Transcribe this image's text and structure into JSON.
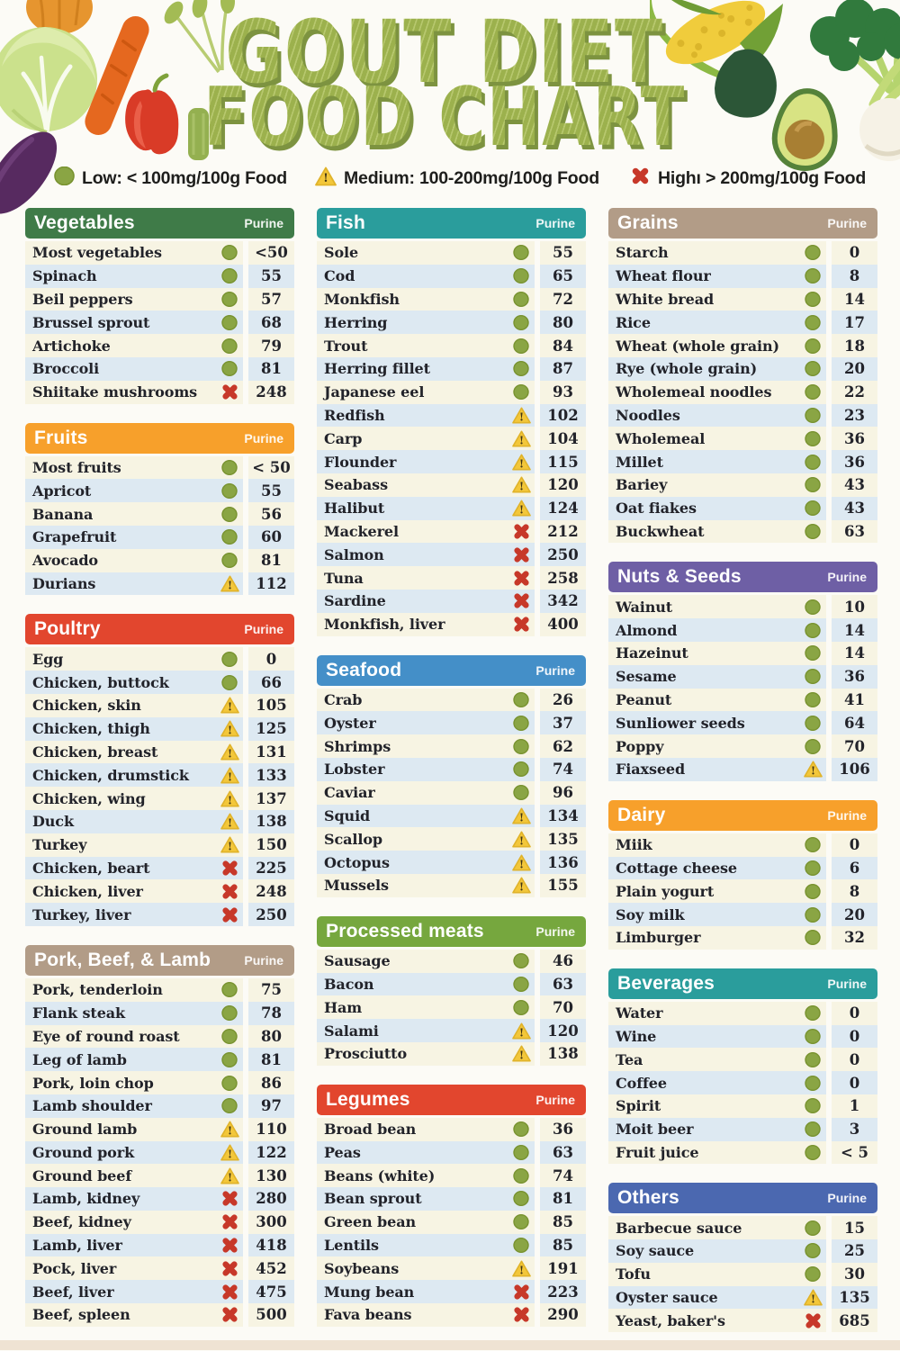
{
  "title": {
    "line1": "GOUT DIET",
    "line2": "FOOD CHART"
  },
  "legend": [
    {
      "level": "low",
      "label": "Low: < 100mg/100g Food"
    },
    {
      "level": "medium",
      "label": "Medium: 100-200mg/100g Food"
    },
    {
      "level": "high",
      "label": "Highı > 200mg/100g Food"
    }
  ],
  "purine_label": "Purine",
  "colors": {
    "low_icon": "#8aa544",
    "medium_icon": "#f3c73a",
    "high_icon": "#c73829",
    "row_cream": "#f7f4e3",
    "row_blue": "#dde9f2"
  },
  "chart_data": {
    "type": "table",
    "value_unit": "mg purine / 100g food",
    "columns": [
      [
        {
          "title": "Vegetables",
          "color": "#3f7b48",
          "rows": [
            {
              "name": "Most vegetables",
              "level": "low",
              "value": "<50"
            },
            {
              "name": "Spinach",
              "level": "low",
              "value": "55"
            },
            {
              "name": "Beil peppers",
              "level": "low",
              "value": "57"
            },
            {
              "name": "Brussel sprout",
              "level": "low",
              "value": "68"
            },
            {
              "name": "Artichoke",
              "level": "low",
              "value": "79"
            },
            {
              "name": "Broccoli",
              "level": "low",
              "value": "81"
            },
            {
              "name": "Shiitake mushrooms",
              "level": "high",
              "value": "248"
            }
          ]
        },
        {
          "title": "Fruits",
          "color": "#f7a02b",
          "rows": [
            {
              "name": "Most fruits",
              "level": "low",
              "value": "< 50"
            },
            {
              "name": "Apricot",
              "level": "low",
              "value": "55"
            },
            {
              "name": "Banana",
              "level": "low",
              "value": "56"
            },
            {
              "name": "Grapefruit",
              "level": "low",
              "value": "60"
            },
            {
              "name": "Avocado",
              "level": "low",
              "value": "81"
            },
            {
              "name": "Durians",
              "level": "medium",
              "value": "112"
            }
          ]
        },
        {
          "title": "Poultry",
          "color": "#e2462e",
          "rows": [
            {
              "name": "Egg",
              "level": "low",
              "value": "0"
            },
            {
              "name": "Chicken, buttock",
              "level": "low",
              "value": "66"
            },
            {
              "name": "Chicken, skin",
              "level": "medium",
              "value": "105"
            },
            {
              "name": "Chicken, thigh",
              "level": "medium",
              "value": "125"
            },
            {
              "name": "Chicken, breast",
              "level": "medium",
              "value": "131"
            },
            {
              "name": "Chicken, drumstick",
              "level": "medium",
              "value": "133"
            },
            {
              "name": "Chicken, wing",
              "level": "medium",
              "value": "137"
            },
            {
              "name": "Duck",
              "level": "medium",
              "value": "138"
            },
            {
              "name": "Turkey",
              "level": "medium",
              "value": "150"
            },
            {
              "name": "Chicken, beart",
              "level": "high",
              "value": "225"
            },
            {
              "name": "Chicken, liver",
              "level": "high",
              "value": "248"
            },
            {
              "name": "Turkey, liver",
              "level": "high",
              "value": "250"
            }
          ]
        },
        {
          "title": "Pork, Beef, & Lamb",
          "color": "#b29c87",
          "rows": [
            {
              "name": "Pork, tenderloin",
              "level": "low",
              "value": "75"
            },
            {
              "name": "Flank steak",
              "level": "low",
              "value": "78"
            },
            {
              "name": "Eye of round roast",
              "level": "low",
              "value": "80"
            },
            {
              "name": "Leg of lamb",
              "level": "low",
              "value": "81"
            },
            {
              "name": "Pork, loin chop",
              "level": "low",
              "value": "86"
            },
            {
              "name": "Lamb shoulder",
              "level": "low",
              "value": "97"
            },
            {
              "name": "Ground lamb",
              "level": "medium",
              "value": "110"
            },
            {
              "name": "Ground pork",
              "level": "medium",
              "value": "122"
            },
            {
              "name": "Ground beef",
              "level": "medium",
              "value": "130"
            },
            {
              "name": "Lamb, kidney",
              "level": "high",
              "value": "280"
            },
            {
              "name": "Beef, kidney",
              "level": "high",
              "value": "300"
            },
            {
              "name": "Lamb, liver",
              "level": "high",
              "value": "418"
            },
            {
              "name": "Pock, liver",
              "level": "high",
              "value": "452"
            },
            {
              "name": "Beef, liver",
              "level": "high",
              "value": "475"
            },
            {
              "name": "Beef, spleen",
              "level": "high",
              "value": "500"
            }
          ]
        }
      ],
      [
        {
          "title": "Fish",
          "color": "#2a9d9c",
          "rows": [
            {
              "name": "Sole",
              "level": "low",
              "value": "55"
            },
            {
              "name": "Cod",
              "level": "low",
              "value": "65"
            },
            {
              "name": "Monkfish",
              "level": "low",
              "value": "72"
            },
            {
              "name": "Herring",
              "level": "low",
              "value": "80"
            },
            {
              "name": "Trout",
              "level": "low",
              "value": "84"
            },
            {
              "name": "Herring fillet",
              "level": "low",
              "value": "87"
            },
            {
              "name": "Japanese eel",
              "level": "low",
              "value": "93"
            },
            {
              "name": "Redfish",
              "level": "medium",
              "value": "102"
            },
            {
              "name": "Carp",
              "level": "medium",
              "value": "104"
            },
            {
              "name": "Flounder",
              "level": "medium",
              "value": "115"
            },
            {
              "name": "Seabass",
              "level": "medium",
              "value": "120"
            },
            {
              "name": "Halibut",
              "level": "medium",
              "value": "124"
            },
            {
              "name": "Mackerel",
              "level": "high",
              "value": "212"
            },
            {
              "name": "Salmon",
              "level": "high",
              "value": "250"
            },
            {
              "name": "Tuna",
              "level": "high",
              "value": "258"
            },
            {
              "name": "Sardine",
              "level": "high",
              "value": "342"
            },
            {
              "name": "Monkfish, liver",
              "level": "high",
              "value": "400"
            }
          ]
        },
        {
          "title": "Seafood",
          "color": "#448fc8",
          "rows": [
            {
              "name": "Crab",
              "level": "low",
              "value": "26"
            },
            {
              "name": "Oyster",
              "level": "low",
              "value": "37"
            },
            {
              "name": "Shrimps",
              "level": "low",
              "value": "62"
            },
            {
              "name": "Lobster",
              "level": "low",
              "value": "74"
            },
            {
              "name": "Caviar",
              "level": "low",
              "value": "96"
            },
            {
              "name": "Squid",
              "level": "medium",
              "value": "134"
            },
            {
              "name": "Scallop",
              "level": "medium",
              "value": "135"
            },
            {
              "name": "Octopus",
              "level": "medium",
              "value": "136"
            },
            {
              "name": "Mussels",
              "level": "medium",
              "value": "155"
            }
          ]
        },
        {
          "title": "Processed meats",
          "color": "#76a73e",
          "rows": [
            {
              "name": "Sausage",
              "level": "low",
              "value": "46"
            },
            {
              "name": "Bacon",
              "level": "low",
              "value": "63"
            },
            {
              "name": "Ham",
              "level": "low",
              "value": "70"
            },
            {
              "name": "Salami",
              "level": "medium",
              "value": "120"
            },
            {
              "name": "Prosciutto",
              "level": "medium",
              "value": "138"
            }
          ]
        },
        {
          "title": "Legumes",
          "color": "#e2462e",
          "rows": [
            {
              "name": "Broad bean",
              "level": "low",
              "value": "36"
            },
            {
              "name": "Peas",
              "level": "low",
              "value": "63"
            },
            {
              "name": "Beans (white)",
              "level": "low",
              "value": "74"
            },
            {
              "name": "Bean sprout",
              "level": "low",
              "value": "81"
            },
            {
              "name": "Green bean",
              "level": "low",
              "value": "85"
            },
            {
              "name": "Lentils",
              "level": "low",
              "value": "85"
            },
            {
              "name": "Soybeans",
              "level": "medium",
              "value": "191"
            },
            {
              "name": "Mung bean",
              "level": "high",
              "value": "223"
            },
            {
              "name": "Fava beans",
              "level": "high",
              "value": "290"
            }
          ]
        }
      ],
      [
        {
          "title": "Grains",
          "color": "#b29c87",
          "rows": [
            {
              "name": "Starch",
              "level": "low",
              "value": "0"
            },
            {
              "name": "Wheat flour",
              "level": "low",
              "value": "8"
            },
            {
              "name": "White bread",
              "level": "low",
              "value": "14"
            },
            {
              "name": "Rice",
              "level": "low",
              "value": "17"
            },
            {
              "name": "Wheat (whole grain)",
              "level": "low",
              "value": "18"
            },
            {
              "name": "Rye (whole grain)",
              "level": "low",
              "value": "20"
            },
            {
              "name": "Wholemeal noodles",
              "level": "low",
              "value": "22"
            },
            {
              "name": "Noodles",
              "level": "low",
              "value": "23"
            },
            {
              "name": "Wholemeal",
              "level": "low",
              "value": "36"
            },
            {
              "name": "Millet",
              "level": "low",
              "value": "36"
            },
            {
              "name": "Bariey",
              "level": "low",
              "value": "43"
            },
            {
              "name": "Oat fiakes",
              "level": "low",
              "value": "43"
            },
            {
              "name": "Buckwheat",
              "level": "low",
              "value": "63"
            }
          ]
        },
        {
          "title": "Nuts & Seeds",
          "color": "#6e5fa5",
          "rows": [
            {
              "name": "Wainut",
              "level": "low",
              "value": "10"
            },
            {
              "name": "Almond",
              "level": "low",
              "value": "14"
            },
            {
              "name": "Hazeinut",
              "level": "low",
              "value": "14"
            },
            {
              "name": "Sesame",
              "level": "low",
              "value": "36"
            },
            {
              "name": "Peanut",
              "level": "low",
              "value": "41"
            },
            {
              "name": "Sunliower seeds",
              "level": "low",
              "value": "64"
            },
            {
              "name": "Poppy",
              "level": "low",
              "value": "70"
            },
            {
              "name": "Fiaxseed",
              "level": "medium",
              "value": "106"
            }
          ]
        },
        {
          "title": "Dairy",
          "color": "#f7a02b",
          "rows": [
            {
              "name": "Miik",
              "level": "low",
              "value": "0"
            },
            {
              "name": "Cottage cheese",
              "level": "low",
              "value": "6"
            },
            {
              "name": "Plain yogurt",
              "level": "low",
              "value": "8"
            },
            {
              "name": "Soy milk",
              "level": "low",
              "value": "20"
            },
            {
              "name": "Limburger",
              "level": "low",
              "value": "32"
            }
          ]
        },
        {
          "title": "Beverages",
          "color": "#2a9d9c",
          "rows": [
            {
              "name": "Water",
              "level": "low",
              "value": "0"
            },
            {
              "name": "Wine",
              "level": "low",
              "value": "0"
            },
            {
              "name": "Tea",
              "level": "low",
              "value": "0"
            },
            {
              "name": "Coffee",
              "level": "low",
              "value": "0"
            },
            {
              "name": "Spirit",
              "level": "low",
              "value": "1"
            },
            {
              "name": "Moit beer",
              "level": "low",
              "value": "3"
            },
            {
              "name": "Fruit juice",
              "level": "low",
              "value": "< 5"
            }
          ]
        },
        {
          "title": "Others",
          "color": "#4b68b0",
          "rows": [
            {
              "name": "Barbecue sauce",
              "level": "low",
              "value": "15"
            },
            {
              "name": "Soy sauce",
              "level": "low",
              "value": "25"
            },
            {
              "name": "Tofu",
              "level": "low",
              "value": "30"
            },
            {
              "name": "Oyster sauce",
              "level": "medium",
              "value": "135"
            },
            {
              "name": "Yeast, baker's",
              "level": "high",
              "value": "685"
            }
          ]
        }
      ]
    ]
  }
}
